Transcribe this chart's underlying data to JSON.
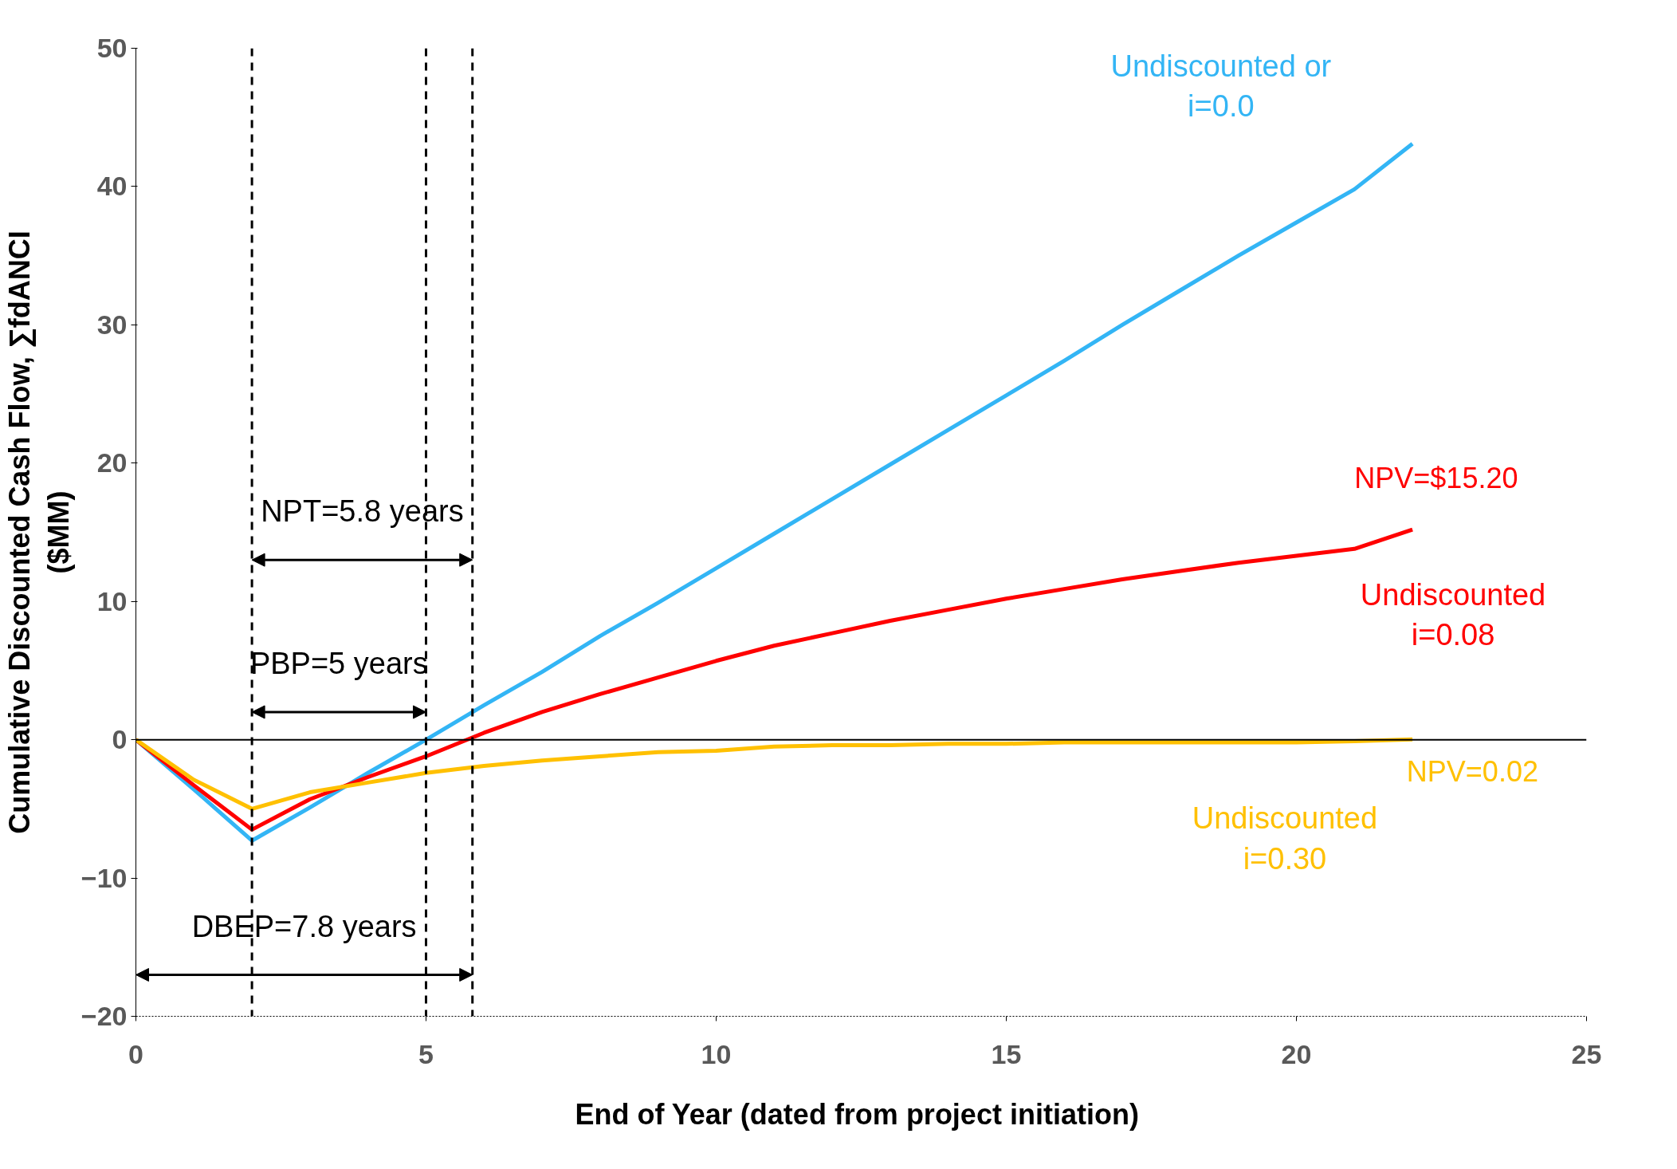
{
  "chart_data": {
    "type": "line",
    "xlabel": "End of Year  (dated from project initiation)",
    "ylabel": "Cumulative Discounted Cash Flow, ∑fdANCI\n($MM)",
    "x": [
      0,
      1,
      2,
      3,
      4,
      5,
      6,
      7,
      8,
      9,
      10,
      11,
      12,
      13,
      14,
      15,
      16,
      17,
      18,
      19,
      20,
      21,
      22
    ],
    "series": [
      {
        "name": "Undiscounted or\ni=0.0",
        "color": "#33b5f5",
        "values": [
          0,
          -3.6,
          -7.3,
          -4.9,
          -2.4,
          0,
          2.5,
          4.9,
          7.5,
          9.9,
          12.4,
          14.9,
          17.4,
          19.9,
          22.4,
          24.9,
          27.4,
          30.0,
          32.5,
          35.0,
          37.4,
          39.8,
          43.1
        ]
      },
      {
        "name": "Undiscounted\ni=0.08",
        "color": "#ff0000",
        "values": [
          0,
          -3.3,
          -6.5,
          -4.3,
          -2.7,
          -1.2,
          0.5,
          2.0,
          3.3,
          4.5,
          5.7,
          6.8,
          7.7,
          8.6,
          9.4,
          10.2,
          10.9,
          11.6,
          12.2,
          12.8,
          13.3,
          13.8,
          15.2
        ]
      },
      {
        "name": "Undiscounted\ni=0.30",
        "color": "#ffc000",
        "values": [
          0,
          -2.9,
          -5.0,
          -3.8,
          -3.1,
          -2.4,
          -1.9,
          -1.5,
          -1.2,
          -0.9,
          -0.8,
          -0.5,
          -0.4,
          -0.4,
          -0.3,
          -0.3,
          -0.2,
          -0.2,
          -0.2,
          -0.2,
          -0.2,
          -0.1,
          0.02
        ]
      }
    ],
    "xlim": [
      0,
      25
    ],
    "xticks": [
      0,
      5,
      10,
      15,
      20,
      25
    ],
    "ylim": [
      -20,
      50
    ],
    "yticks": [
      -20,
      -10,
      0,
      10,
      20,
      30,
      40,
      50
    ],
    "grid": false,
    "marker": "none",
    "line_style": "solid",
    "ref_lines": [
      {
        "axis": "y",
        "value": 0,
        "color": "#000000",
        "line_style": "solid"
      },
      {
        "axis": "x",
        "value": 2,
        "color": "#000000",
        "line_style": "dashed"
      },
      {
        "axis": "x",
        "value": 5,
        "color": "#000000",
        "line_style": "dashed"
      },
      {
        "axis": "x",
        "value": 5.8,
        "color": "#000000",
        "line_style": "dashed"
      }
    ],
    "annotations": [
      "NPT=5.8 years",
      "PBP=5 years",
      "DBEP=7.8 years",
      "NPV=$15.20",
      "NPV=0.02"
    ]
  }
}
